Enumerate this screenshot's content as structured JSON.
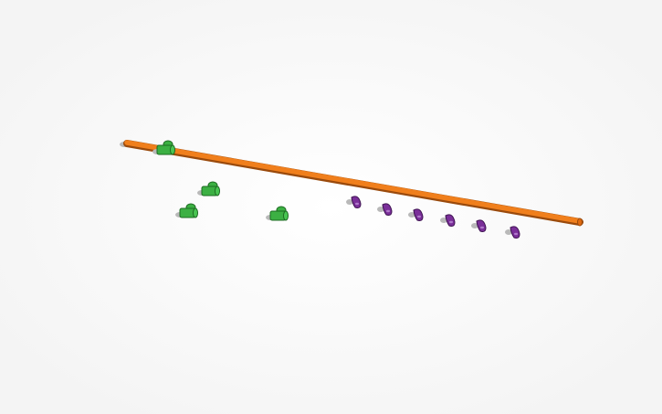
{
  "scene": {
    "background": "#ffffff",
    "colors": {
      "pipe": "#f07f1c",
      "pipe_edge": "#9a4a0c",
      "tee": "#3cb043",
      "tee_edge": "#1d6b22",
      "elbow": "#7a2f99",
      "elbow_edge": "#3d1250",
      "shadow": "#b9b9b9"
    },
    "objects": {
      "pipe_count": 1,
      "tee_count": 4,
      "elbow_count": 6
    }
  }
}
